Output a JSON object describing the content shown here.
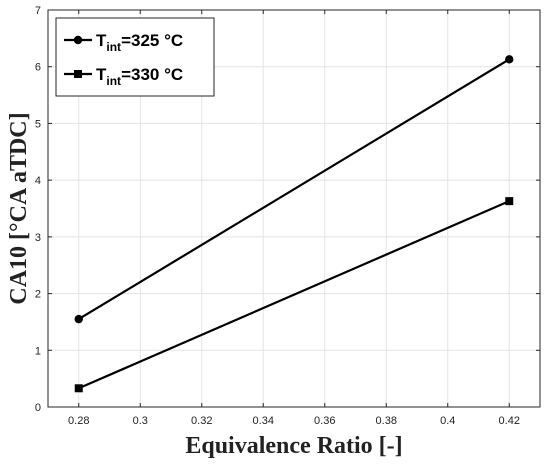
{
  "chart_data": {
    "type": "line",
    "xlabel": "Equivalence Ratio [-]",
    "ylabel": "CA10 [°CA aTDC]",
    "xlim": [
      0.27,
      0.43
    ],
    "ylim": [
      0,
      7
    ],
    "xticks": [
      0.28,
      0.3,
      0.32,
      0.34,
      0.36,
      0.38,
      0.4,
      0.42
    ],
    "xtick_labels": [
      "0.28",
      "0.3",
      "0.32",
      "0.34",
      "0.36",
      "0.38",
      "0.4",
      "0.42"
    ],
    "yticks": [
      0,
      1,
      2,
      3,
      4,
      5,
      6,
      7
    ],
    "ytick_labels": [
      "0",
      "1",
      "2",
      "3",
      "4",
      "5",
      "6",
      "7"
    ],
    "grid": true,
    "legend_position": "top-left",
    "series": [
      {
        "name": "T",
        "name_sub": "int",
        "name_suffix": "=325 °C",
        "marker": "circle",
        "color": "#000000",
        "x": [
          0.28,
          0.42
        ],
        "y": [
          1.55,
          6.13
        ]
      },
      {
        "name": "T",
        "name_sub": "int",
        "name_suffix": "=330 °C",
        "marker": "square",
        "color": "#000000",
        "x": [
          0.28,
          0.42
        ],
        "y": [
          0.33,
          3.63
        ]
      }
    ]
  }
}
